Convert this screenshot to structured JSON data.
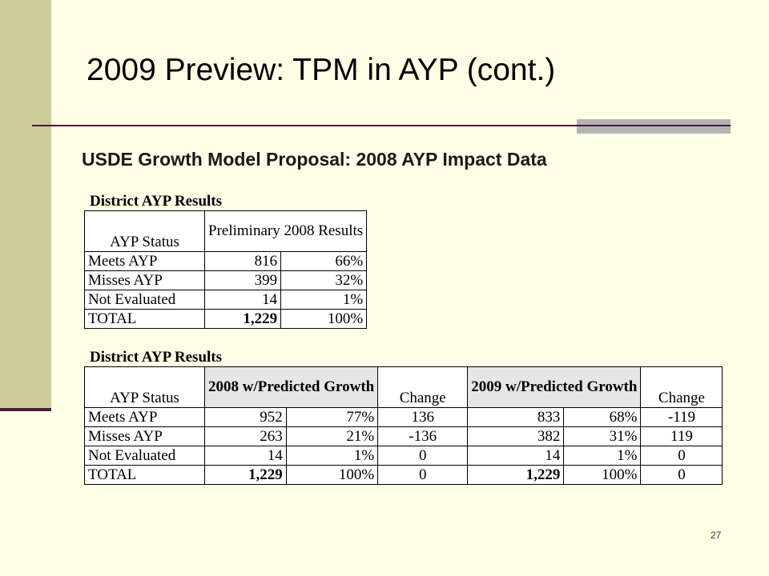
{
  "slide": {
    "title": "2009 Preview: TPM in AYP (cont.)",
    "subtitle": "USDE Growth Model Proposal: 2008 AYP Impact Data",
    "page_number": "27",
    "colors": {
      "background": "#ffffe6",
      "sidebar": "#cccc99",
      "accent_dark": "#4d1a3e",
      "accent_grey": "#b3b3b3"
    }
  },
  "table1": {
    "title": "District AYP Results",
    "header": {
      "status": "AYP Status",
      "group": "Preliminary 2008 Results"
    },
    "rows": [
      {
        "status": "Meets AYP",
        "count": "816",
        "pct": "66%"
      },
      {
        "status": "Misses AYP",
        "count": "399",
        "pct": "32%"
      },
      {
        "status": "Not Evaluated",
        "count": "14",
        "pct": "1%"
      },
      {
        "status": "TOTAL",
        "count": "1,229",
        "pct": "100%"
      }
    ]
  },
  "table2": {
    "title": "District AYP Results",
    "header": {
      "status": "AYP Status",
      "group1": "2008 w/Predicted Growth",
      "change1": "Change",
      "group2": "2009 w/Predicted Growth",
      "change2": "Change"
    },
    "rows": [
      {
        "status": "Meets AYP",
        "c2008": "952",
        "p2008": "77%",
        "chg1": "136",
        "c2009": "833",
        "p2009": "68%",
        "chg2": "-119"
      },
      {
        "status": "Misses AYP",
        "c2008": "263",
        "p2008": "21%",
        "chg1": "-136",
        "c2009": "382",
        "p2009": "31%",
        "chg2": "119"
      },
      {
        "status": "Not Evaluated",
        "c2008": "14",
        "p2008": "1%",
        "chg1": "0",
        "c2009": "14",
        "p2009": "1%",
        "chg2": "0"
      },
      {
        "status": "TOTAL",
        "c2008": "1,229",
        "p2008": "100%",
        "chg1": "0",
        "c2009": "1,229",
        "p2009": "100%",
        "chg2": "0"
      }
    ]
  }
}
